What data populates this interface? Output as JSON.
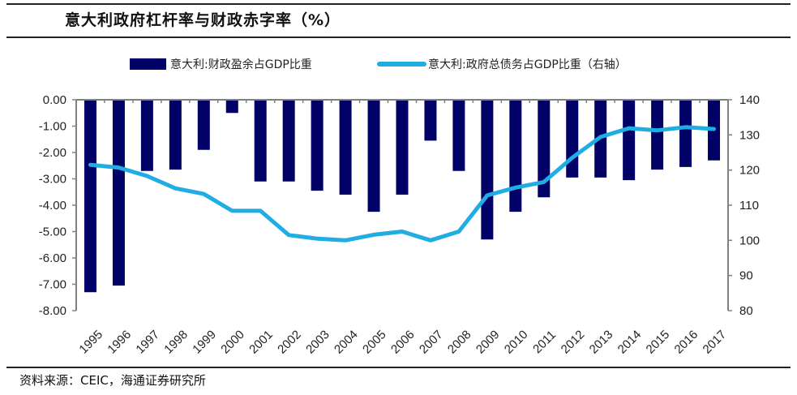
{
  "title": "意大利政府杠杆率与财政赤字率（%）",
  "source": "资料来源：CEIC，海通证券研究所",
  "colors": {
    "bar": "#000066",
    "line": "#1FADE4",
    "axis": "#808080"
  },
  "chart_data": {
    "type": "bar+line",
    "title": "意大利政府杠杆率与财政赤字率（%）",
    "categories": [
      "1995",
      "1996",
      "1997",
      "1998",
      "1999",
      "2000",
      "2001",
      "2002",
      "2003",
      "2004",
      "2005",
      "2006",
      "2007",
      "2008",
      "2009",
      "2010",
      "2011",
      "2012",
      "2013",
      "2014",
      "2015",
      "2016",
      "2017"
    ],
    "series": [
      {
        "name": "意大利:财政盈余占GDP比重",
        "type": "bar",
        "axis": "left",
        "values": [
          -7.3,
          -7.05,
          -2.7,
          -2.65,
          -1.9,
          -0.5,
          -3.1,
          -3.1,
          -3.45,
          -3.6,
          -4.25,
          -3.6,
          -1.55,
          -2.7,
          -5.3,
          -4.25,
          -3.7,
          -2.95,
          -2.95,
          -3.05,
          -2.65,
          -2.55,
          -2.3
        ]
      },
      {
        "name": "意大利:政府总债务占GDP比重（右轴）",
        "type": "line",
        "axis": "right",
        "values": [
          121.5,
          120.7,
          118.3,
          114.8,
          113.2,
          108.4,
          108.4,
          101.5,
          100.5,
          100.0,
          101.6,
          102.5,
          100.0,
          102.5,
          112.8,
          115.0,
          116.6,
          123.5,
          129.4,
          131.9,
          131.3,
          132.2,
          131.7
        ]
      }
    ],
    "left_axis": {
      "min": -8,
      "max": 0,
      "ticks": [
        "0.00",
        "-1.00",
        "-2.00",
        "-3.00",
        "-4.00",
        "-5.00",
        "-6.00",
        "-7.00",
        "-8.00"
      ]
    },
    "right_axis": {
      "min": 80,
      "max": 140,
      "ticks": [
        "140",
        "130",
        "120",
        "110",
        "100",
        "90",
        "80"
      ]
    },
    "legend": {
      "position": "top",
      "entries": [
        "意大利:财政盈余占GDP比重",
        "意大利:政府总债务占GDP比重（右轴）"
      ]
    },
    "grid": false
  }
}
